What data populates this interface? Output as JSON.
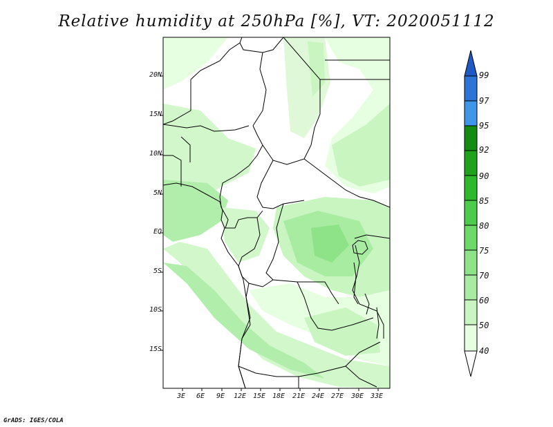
{
  "title": "Relative humidity at 250hPa [%], VT: 2020051112",
  "credit": "GrADS: IGES/COLA",
  "map": {
    "lat_labels": [
      "20N",
      "15N",
      "10N",
      "5N",
      "EQ",
      "5S",
      "10S",
      "15S"
    ],
    "lon_labels": [
      "3E",
      "6E",
      "9E",
      "12E",
      "15E",
      "18E",
      "21E",
      "24E",
      "27E",
      "30E",
      "33E"
    ]
  },
  "colorbar": {
    "labels": [
      "40",
      "50",
      "60",
      "70",
      "75",
      "80",
      "85",
      "90",
      "92",
      "95",
      "97",
      "99"
    ],
    "colors": [
      "#ffffff",
      "#e6ffe0",
      "#c8f5c0",
      "#a8eca2",
      "#8ee288",
      "#6ed86a",
      "#4dcb4d",
      "#2eb82e",
      "#1fa31f",
      "#148c14",
      "#3f96e8",
      "#2e74d6",
      "#1f5ac4"
    ]
  }
}
